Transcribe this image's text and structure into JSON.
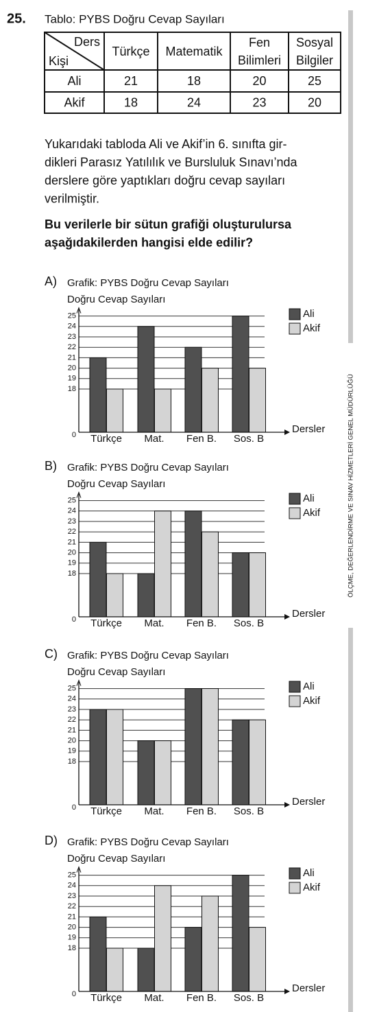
{
  "question": {
    "number": "25.",
    "table_title": "Tablo: PYBS Doğru Cevap Sayıları",
    "paragraph": [
      "Yukarıdaki tabloda Ali ve Akif’in 6. sınıfta gir-",
      "dikleri Parasız Yatılılık ve Bursluluk Sınavı’nda",
      "derslere göre yaptıkları doğru cevap sayıları",
      "verilmiştir."
    ],
    "prompt": [
      "Bu verilerle bir sütun grafiği oluşturulursa",
      "aşağıdakilerden hangisi elde edilir?"
    ]
  },
  "table": {
    "corner_top": "Ders",
    "corner_bottom": "Kişi",
    "header": [
      [
        "Türkçe"
      ],
      [
        "Matematik"
      ],
      [
        "Fen",
        "Bilimleri"
      ],
      [
        "Sosyal",
        "Bilgiler"
      ]
    ],
    "rows": [
      [
        "Ali",
        21,
        18,
        20,
        25
      ],
      [
        "Akif",
        18,
        24,
        23,
        20
      ]
    ]
  },
  "options": [
    "A)",
    "B)",
    "C)",
    "D)"
  ],
  "side_text": "ÖLÇME, DEĞERLENDİRME VE SINAV HİZMETLERİ GENEL MÜDÜRLÜĞÜ",
  "chart_data": [
    {
      "type": "bar",
      "title": "Grafik: PYBS Doğru Cevap Sayıları",
      "y_label": "Doğru Cevap Sayıları",
      "x_label": "Dersler",
      "categories": [
        "Türkçe",
        "Mat.",
        "Fen B.",
        "Sos. B"
      ],
      "series": [
        {
          "name": "Ali",
          "color": "#505050",
          "values": [
            21,
            24,
            22,
            25
          ]
        },
        {
          "name": "Akif",
          "color": "#d4d4d4",
          "values": [
            18,
            18,
            20,
            20
          ]
        }
      ],
      "ylim": [
        0,
        25
      ],
      "yticks": [
        0,
        18,
        19,
        20,
        21,
        22,
        23,
        24,
        25
      ],
      "grid": true
    },
    {
      "type": "bar",
      "title": "Grafik: PYBS Doğru Cevap Sayıları",
      "y_label": "Doğru Cevap Sayıları",
      "x_label": "Dersler",
      "categories": [
        "Türkçe",
        "Mat.",
        "Fen B.",
        "Sos. B"
      ],
      "series": [
        {
          "name": "Ali",
          "color": "#505050",
          "values": [
            21,
            18,
            24,
            20
          ]
        },
        {
          "name": "Akif",
          "color": "#d4d4d4",
          "values": [
            18,
            24,
            22,
            20
          ]
        }
      ],
      "ylim": [
        0,
        25
      ],
      "yticks": [
        0,
        18,
        19,
        20,
        21,
        22,
        23,
        24,
        25
      ],
      "grid": true
    },
    {
      "type": "bar",
      "title": "Grafik: PYBS Doğru Cevap Sayıları",
      "y_label": "Doğru Cevap Sayıları",
      "x_label": "Dersler",
      "categories": [
        "Türkçe",
        "Mat.",
        "Fen B.",
        "Sos. B"
      ],
      "series": [
        {
          "name": "Ali",
          "color": "#505050",
          "values": [
            23,
            20,
            25,
            22
          ]
        },
        {
          "name": "Akif",
          "color": "#d4d4d4",
          "values": [
            23,
            20,
            25,
            22
          ]
        }
      ],
      "ylim": [
        0,
        25
      ],
      "yticks": [
        0,
        18,
        19,
        20,
        21,
        22,
        23,
        24,
        25
      ],
      "grid": true
    },
    {
      "type": "bar",
      "title": "Grafik: PYBS Doğru Cevap Sayıları",
      "y_label": "Doğru Cevap Sayıları",
      "x_label": "Dersler",
      "categories": [
        "Türkçe",
        "Mat.",
        "Fen B.",
        "Sos. B"
      ],
      "series": [
        {
          "name": "Ali",
          "color": "#505050",
          "values": [
            21,
            18,
            20,
            25
          ]
        },
        {
          "name": "Akif",
          "color": "#d4d4d4",
          "values": [
            18,
            24,
            23,
            20
          ]
        }
      ],
      "ylim": [
        0,
        25
      ],
      "yticks": [
        0,
        18,
        19,
        20,
        21,
        22,
        23,
        24,
        25
      ],
      "grid": true
    }
  ]
}
